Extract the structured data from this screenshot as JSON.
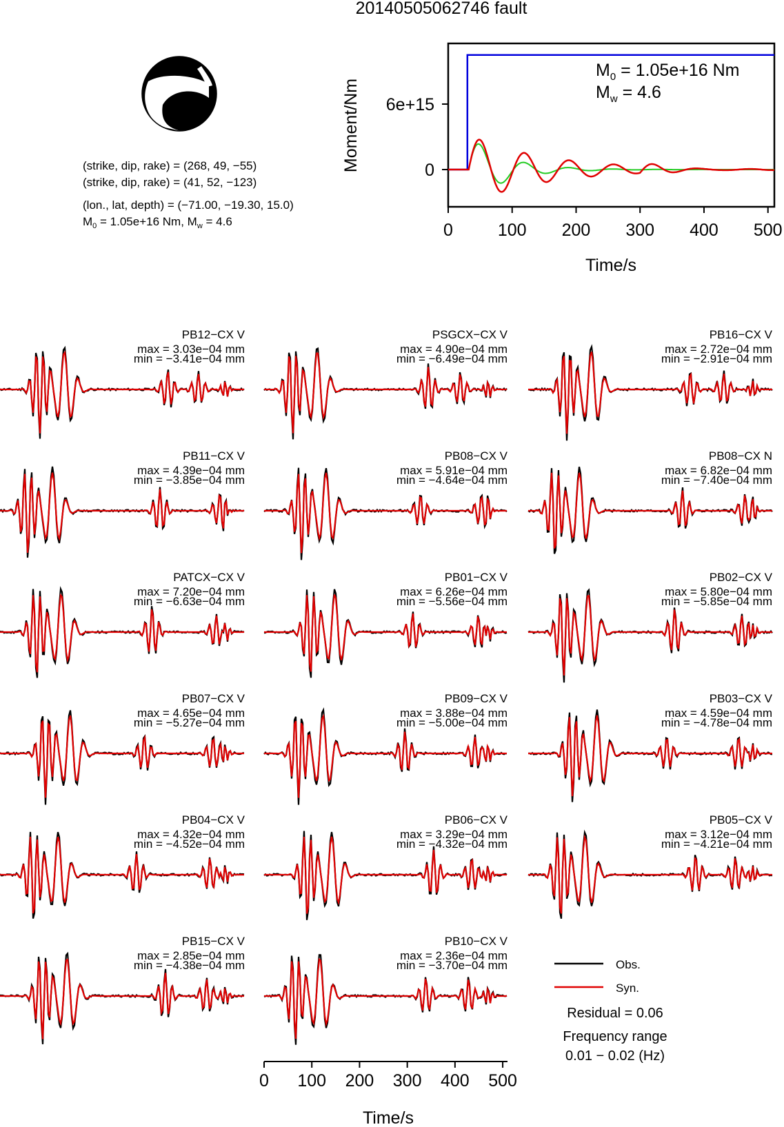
{
  "title": "20140505062746 fault",
  "colors": {
    "obs": "#000000",
    "syn": "#e00000",
    "moment": "#0000dd",
    "stf": "#22cc22"
  },
  "info": {
    "plane1": "(strike, dip, rake) = (268, 49, −55)",
    "plane2": "(strike, dip, rake) = (41, 52, −123)",
    "location": "(lon., lat, depth) = (−71.00, −19.30, 15.0)",
    "moment_prefix": "M",
    "moment_sub": "0",
    "moment_mid": " = 1.05e+16 Nm, M",
    "moment_sub2": "w",
    "moment_suffix": " = 4.6"
  },
  "chart_data": [
    {
      "type": "line",
      "name": "moment-function",
      "ylabel": "Moment/Nm",
      "xlabel": "Time/s",
      "xlim": [
        0,
        510
      ],
      "xticks": [
        0,
        100,
        200,
        300,
        400,
        500
      ],
      "ytick_labels": [
        {
          "value": 0,
          "label": "0"
        },
        {
          "value": 6000000000000000.0,
          "label": "6e+15"
        }
      ],
      "m0_text": {
        "prefix": "M",
        "sub": "0",
        "suffix": " = 1.05e+16 Nm"
      },
      "mw_text": {
        "prefix": "M",
        "sub": "w",
        "suffix": " = 4.6"
      },
      "cumulative_moment": {
        "rise_time_s": 30,
        "value": 1.05e+16
      }
    },
    {
      "type": "line",
      "name": "waveform-fits",
      "xlabel": "Time/s",
      "xlim": [
        0,
        510
      ],
      "xticks": [
        0,
        100,
        200,
        300,
        400,
        500
      ],
      "stations": [
        {
          "label": "PB12−CX V",
          "max": "max = 3.03e−04 mm",
          "min": "min = −3.41e−04 mm"
        },
        {
          "label": "PSGCX−CX V",
          "max": "max = 4.90e−04 mm",
          "min": "min = −6.49e−04 mm"
        },
        {
          "label": "PB16−CX V",
          "max": "max = 2.72e−04 mm",
          "min": "min = −2.91e−04 mm"
        },
        {
          "label": "PB11−CX V",
          "max": "max = 4.39e−04 mm",
          "min": "min = −3.85e−04 mm"
        },
        {
          "label": "PB08−CX V",
          "max": "max = 5.91e−04 mm",
          "min": "min = −4.64e−04 mm"
        },
        {
          "label": "PB08−CX N",
          "max": "max = 6.82e−04 mm",
          "min": "min = −7.40e−04 mm"
        },
        {
          "label": "PATCX−CX V",
          "max": "max = 7.20e−04 mm",
          "min": "min = −6.63e−04 mm"
        },
        {
          "label": "PB01−CX V",
          "max": "max = 6.26e−04 mm",
          "min": "min = −5.56e−04 mm"
        },
        {
          "label": "PB02−CX V",
          "max": "max = 5.80e−04 mm",
          "min": "min = −5.85e−04 mm"
        },
        {
          "label": "PB07−CX V",
          "max": "max = 4.65e−04 mm",
          "min": "min = −5.27e−04 mm"
        },
        {
          "label": "PB09−CX V",
          "max": "max = 3.88e−04 mm",
          "min": "min = −5.00e−04 mm"
        },
        {
          "label": "PB03−CX V",
          "max": "max = 4.59e−04 mm",
          "min": "min = −4.78e−04 mm"
        },
        {
          "label": "PB04−CX V",
          "max": "max = 4.32e−04 mm",
          "min": "min = −4.52e−04 mm"
        },
        {
          "label": "PB06−CX V",
          "max": "max = 3.29e−04 mm",
          "min": "min = −4.32e−04 mm"
        },
        {
          "label": "PB05−CX V",
          "max": "max = 3.12e−04 mm",
          "min": "min = −4.21e−04 mm"
        },
        {
          "label": "PB15−CX V",
          "max": "max = 2.85e−04 mm",
          "min": "min = −4.38e−04 mm"
        },
        {
          "label": "PB10−CX V",
          "max": "max = 2.36e−04 mm",
          "min": "min = −3.70e−04 mm"
        }
      ],
      "legend": {
        "obs": "Obs.",
        "syn": "Syn."
      }
    }
  ],
  "residual": "Residual = 0.06",
  "freq_title": "Frequency range",
  "freq_value": "0.01 − 0.02 (Hz)"
}
